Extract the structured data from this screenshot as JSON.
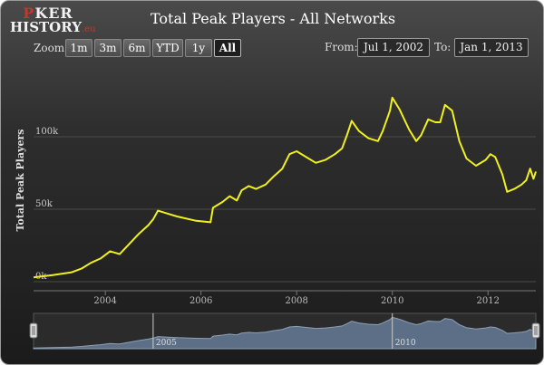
{
  "logo": {
    "line1_a": "P",
    "line1_b": "KER",
    "line2": "HISTORY",
    "line2_suffix": ".eu"
  },
  "title": "Total Peak Players - All Networks",
  "zoom": {
    "label": "Zoom",
    "buttons": [
      "1m",
      "3m",
      "6m",
      "YTD",
      "1y",
      "All"
    ],
    "active": "All"
  },
  "range": {
    "from_label": "From:",
    "from_value": "Jul 1, 2002",
    "to_label": "To:",
    "to_value": "Jan 1, 2013"
  },
  "colors": {
    "line": "#f0f020",
    "navigator_fill": "#5d6f86",
    "background_top": "#4a4a4a",
    "background_bottom": "#1b1b1b"
  },
  "chart_data": {
    "type": "line",
    "title": "Total Peak Players - All Networks",
    "ylabel": "Total Peak Players",
    "xlabel": "",
    "x_range": [
      2002.5,
      2013.0
    ],
    "ylim": [
      0,
      150000
    ],
    "y_ticks": [
      0,
      50000,
      100000
    ],
    "y_tick_labels": [
      "0k",
      "50k",
      "100k"
    ],
    "x_ticks": [
      2004,
      2006,
      2008,
      2010,
      2012
    ],
    "x_tick_labels": [
      "2004",
      "2006",
      "2008",
      "2010",
      "2012"
    ],
    "grid": true,
    "navigator_labels": [
      "2005",
      "2010"
    ],
    "series": [
      {
        "name": "",
        "points": [
          [
            2002.5,
            3000
          ],
          [
            2002.9,
            4500
          ],
          [
            2003.3,
            6500
          ],
          [
            2003.5,
            9000
          ],
          [
            2003.7,
            13000
          ],
          [
            2003.9,
            16000
          ],
          [
            2004.1,
            21000
          ],
          [
            2004.3,
            19000
          ],
          [
            2004.5,
            26000
          ],
          [
            2004.7,
            33000
          ],
          [
            2004.9,
            39000
          ],
          [
            2005.0,
            43000
          ],
          [
            2005.1,
            49000
          ],
          [
            2005.3,
            47000
          ],
          [
            2005.5,
            45000
          ],
          [
            2005.9,
            42000
          ],
          [
            2006.2,
            41000
          ],
          [
            2006.25,
            51000
          ],
          [
            2006.45,
            55000
          ],
          [
            2006.6,
            59000
          ],
          [
            2006.75,
            56000
          ],
          [
            2006.85,
            63000
          ],
          [
            2007.0,
            66000
          ],
          [
            2007.15,
            64000
          ],
          [
            2007.35,
            67000
          ],
          [
            2007.5,
            72000
          ],
          [
            2007.7,
            78000
          ],
          [
            2007.85,
            88000
          ],
          [
            2008.0,
            90000
          ],
          [
            2008.2,
            86000
          ],
          [
            2008.4,
            82000
          ],
          [
            2008.6,
            84000
          ],
          [
            2008.8,
            88000
          ],
          [
            2008.95,
            92000
          ],
          [
            2009.05,
            101000
          ],
          [
            2009.15,
            111000
          ],
          [
            2009.3,
            104000
          ],
          [
            2009.5,
            99000
          ],
          [
            2009.7,
            97000
          ],
          [
            2009.8,
            104000
          ],
          [
            2009.95,
            118000
          ],
          [
            2010.0,
            127000
          ],
          [
            2010.15,
            119000
          ],
          [
            2010.35,
            105000
          ],
          [
            2010.5,
            97000
          ],
          [
            2010.6,
            101000
          ],
          [
            2010.75,
            112000
          ],
          [
            2010.9,
            110000
          ],
          [
            2011.0,
            110000
          ],
          [
            2011.1,
            122000
          ],
          [
            2011.25,
            118000
          ],
          [
            2011.4,
            97000
          ],
          [
            2011.55,
            85000
          ],
          [
            2011.75,
            80000
          ],
          [
            2011.95,
            84000
          ],
          [
            2012.05,
            88000
          ],
          [
            2012.15,
            86000
          ],
          [
            2012.3,
            74000
          ],
          [
            2012.4,
            62000
          ],
          [
            2012.55,
            64000
          ],
          [
            2012.7,
            67000
          ],
          [
            2012.8,
            70000
          ],
          [
            2012.88,
            78000
          ],
          [
            2012.95,
            71000
          ],
          [
            2013.0,
            76000
          ]
        ]
      }
    ]
  }
}
